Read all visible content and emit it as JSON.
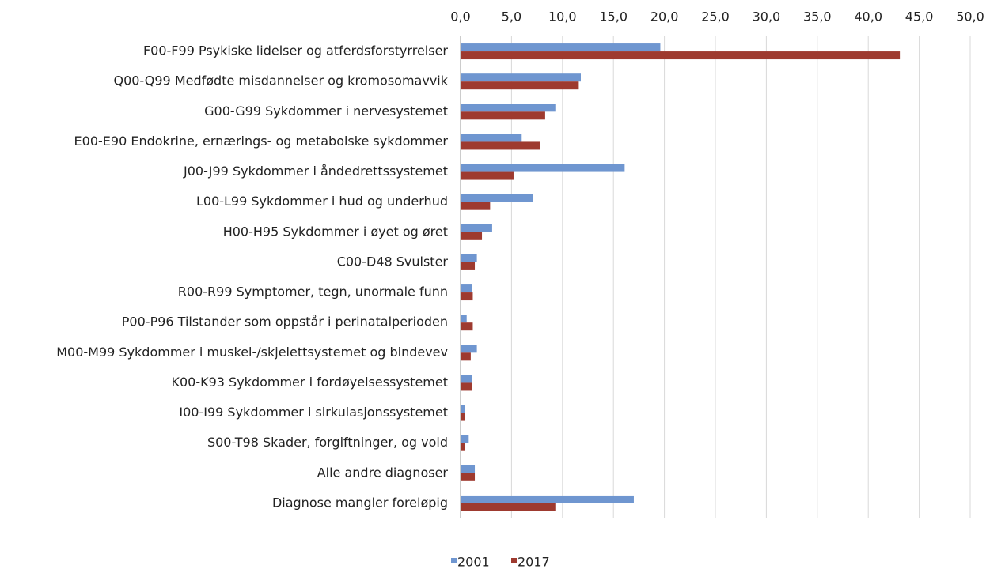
{
  "chart_data": {
    "type": "hbar",
    "categories": [
      "F00-F99 Psykiske lidelser og atferdsforstyrrelser",
      "Q00-Q99 Medfødte misdannelser og kromosomavvik",
      "G00-G99 Sykdommer i nervesystemet",
      "E00-E90 Endokrine, ernærings- og metabolske sykdommer",
      "J00-J99 Sykdommer i åndedrettssystemet",
      "L00-L99 Sykdommer i hud og underhud",
      "H00-H95 Sykdommer i øyet og øret",
      "C00-D48 Svulster",
      "R00-R99 Symptomer, tegn, unormale funn",
      "P00-P96 Tilstander som oppstår i perinatalperioden",
      "M00-M99 Sykdommer i muskel-/skjelettsystemet og bindevev",
      "K00-K93 Sykdommer i fordøyelsessystemet",
      "I00-I99 Sykdommer i sirkulasjonssystemet",
      "S00-T98 Skader, forgiftninger, og vold",
      "Alle andre diagnoser",
      "Diagnose mangler foreløpig"
    ],
    "series": [
      {
        "name": "2001",
        "color": "#6f96d0",
        "values": [
          19.6,
          11.8,
          9.3,
          6.0,
          16.1,
          7.1,
          3.1,
          1.6,
          1.1,
          0.6,
          1.6,
          1.1,
          0.4,
          0.8,
          1.4,
          17.0
        ]
      },
      {
        "name": "2017",
        "color": "#9e3a2f",
        "values": [
          43.1,
          11.6,
          8.3,
          7.8,
          5.2,
          2.9,
          2.1,
          1.4,
          1.2,
          1.2,
          1.0,
          1.1,
          0.4,
          0.4,
          1.4,
          9.3
        ]
      }
    ],
    "xlim": [
      0,
      50
    ],
    "xticks": [
      {
        "value": 0,
        "label": "0,0"
      },
      {
        "value": 5,
        "label": "5,0"
      },
      {
        "value": 10,
        "label": "10,0"
      },
      {
        "value": 15,
        "label": "15,0"
      },
      {
        "value": 20,
        "label": "20,0"
      },
      {
        "value": 25,
        "label": "25,0"
      },
      {
        "value": 30,
        "label": "30,0"
      },
      {
        "value": 35,
        "label": "35,0"
      },
      {
        "value": 40,
        "label": "40,0"
      },
      {
        "value": 45,
        "label": "45,0"
      },
      {
        "value": 50,
        "label": "50,0"
      }
    ],
    "grid": true,
    "legend": "bottom"
  }
}
